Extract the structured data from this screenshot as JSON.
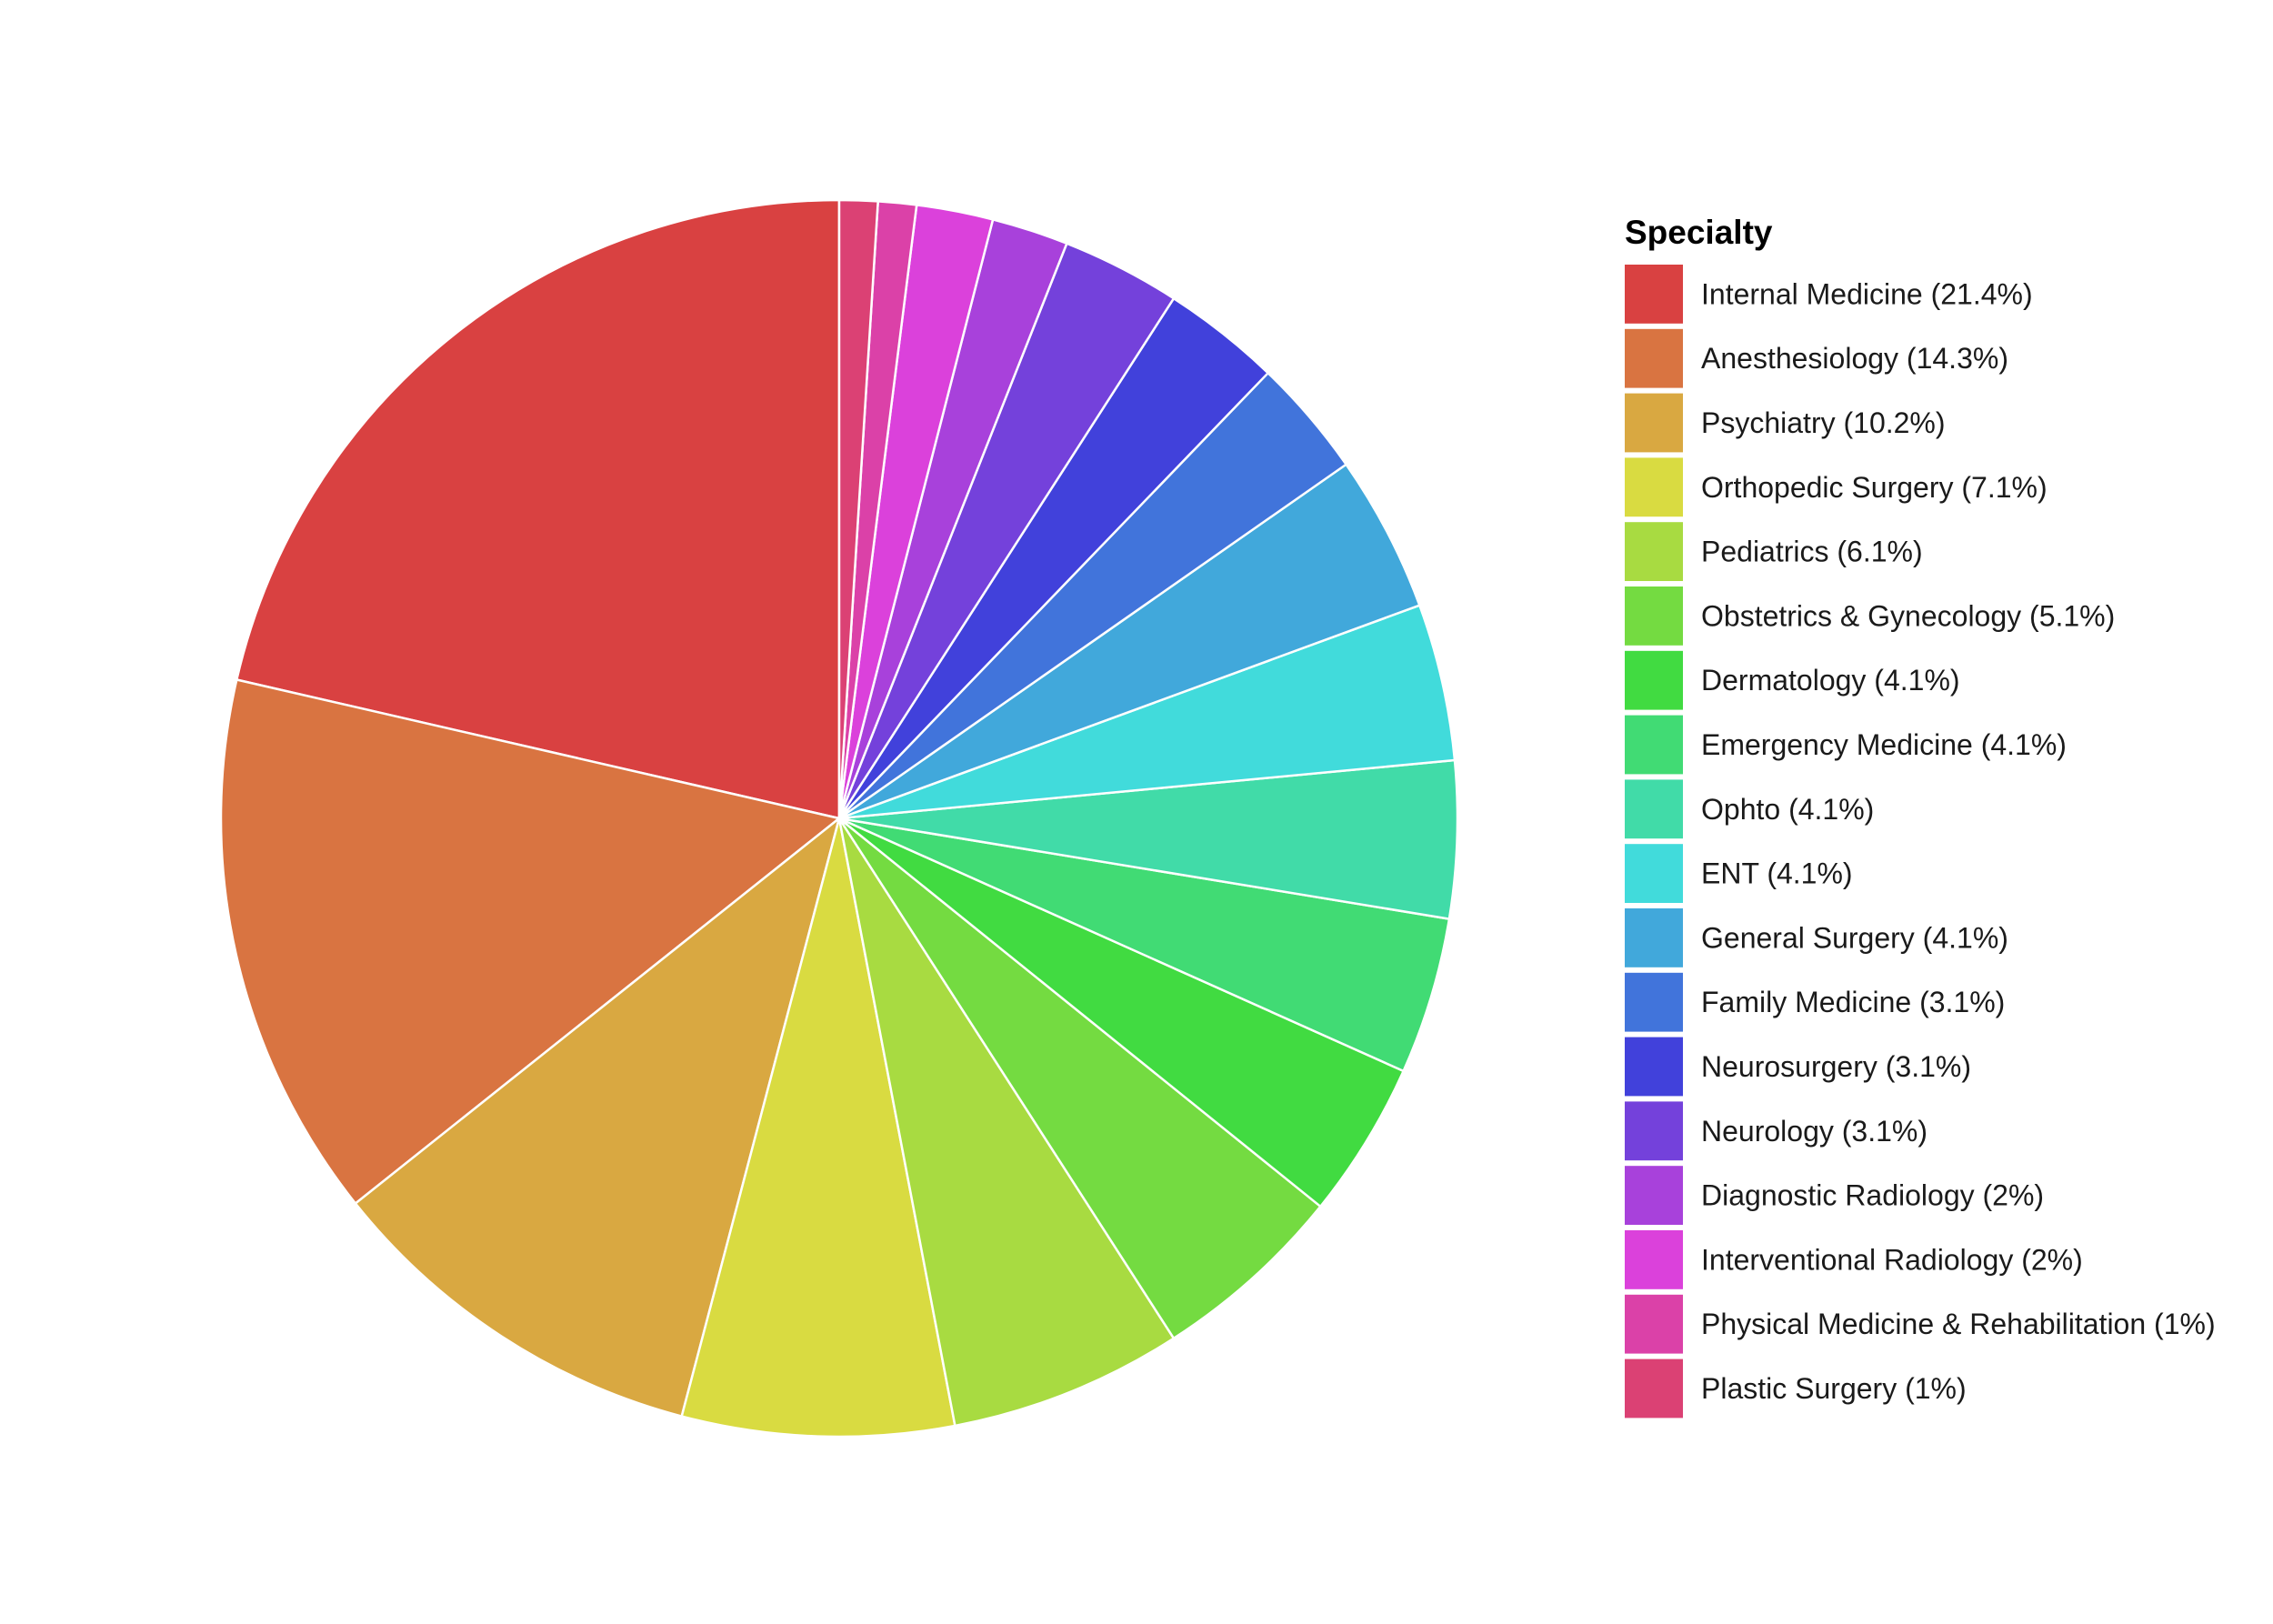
{
  "chart_data": {
    "type": "pie",
    "legend_title": "Specialty",
    "legend_position": "right",
    "start": "12 o'clock",
    "direction": "counterclockwise",
    "slice_border_color": "#ffffff",
    "slices": [
      {
        "label": "Internal Medicine (21.4%)",
        "name": "Internal Medicine",
        "value": 21.4,
        "color": "#D94141"
      },
      {
        "label": "Anesthesiology (14.3%)",
        "name": "Anesthesiology",
        "value": 14.3,
        "color": "#D97441"
      },
      {
        "label": "Psychiatry (10.2%)",
        "name": "Psychiatry",
        "value": 10.2,
        "color": "#D9A841"
      },
      {
        "label": "Orthopedic Surgery (7.1%)",
        "name": "Orthopedic Surgery",
        "value": 7.1,
        "color": "#D9DB41"
      },
      {
        "label": "Pediatrics (6.1%)",
        "name": "Pediatrics",
        "value": 6.1,
        "color": "#A8DB41"
      },
      {
        "label": "Obstetrics & Gynecology (5.1%)",
        "name": "Obstetrics & Gynecology",
        "value": 5.1,
        "color": "#74DB41"
      },
      {
        "label": "Dermatology (4.1%)",
        "name": "Dermatology",
        "value": 4.1,
        "color": "#41DB41"
      },
      {
        "label": "Emergency Medicine (4.1%)",
        "name": "Emergency Medicine",
        "value": 4.1,
        "color": "#41DB74"
      },
      {
        "label": "Ophto (4.1%)",
        "name": "Ophto",
        "value": 4.1,
        "color": "#41DBA8"
      },
      {
        "label": "ENT (4.1%)",
        "name": "ENT",
        "value": 4.1,
        "color": "#41DBDB"
      },
      {
        "label": "General Surgery (4.1%)",
        "name": "General Surgery",
        "value": 4.1,
        "color": "#41A8DB"
      },
      {
        "label": "Family Medicine (3.1%)",
        "name": "Family Medicine",
        "value": 3.1,
        "color": "#4174DB"
      },
      {
        "label": "Neurosurgery (3.1%)",
        "name": "Neurosurgery",
        "value": 3.1,
        "color": "#4141DB"
      },
      {
        "label": "Neurology (3.1%)",
        "name": "Neurology",
        "value": 3.1,
        "color": "#7441DB"
      },
      {
        "label": "Diagnostic Radiology (2%)",
        "name": "Diagnostic Radiology",
        "value": 2.0,
        "color": "#A841DB"
      },
      {
        "label": "Interventional Radiology (2%)",
        "name": "Interventional Radiology",
        "value": 2.0,
        "color": "#DB41DB"
      },
      {
        "label": "Physical Medicine & Rehabilitation (1%)",
        "name": "Physical Medicine & Rehabilitation",
        "value": 1.0,
        "color": "#DB41A8"
      },
      {
        "label": "Plastic Surgery (1%)",
        "name": "Plastic Surgery",
        "value": 1.0,
        "color": "#DB4174"
      }
    ]
  }
}
